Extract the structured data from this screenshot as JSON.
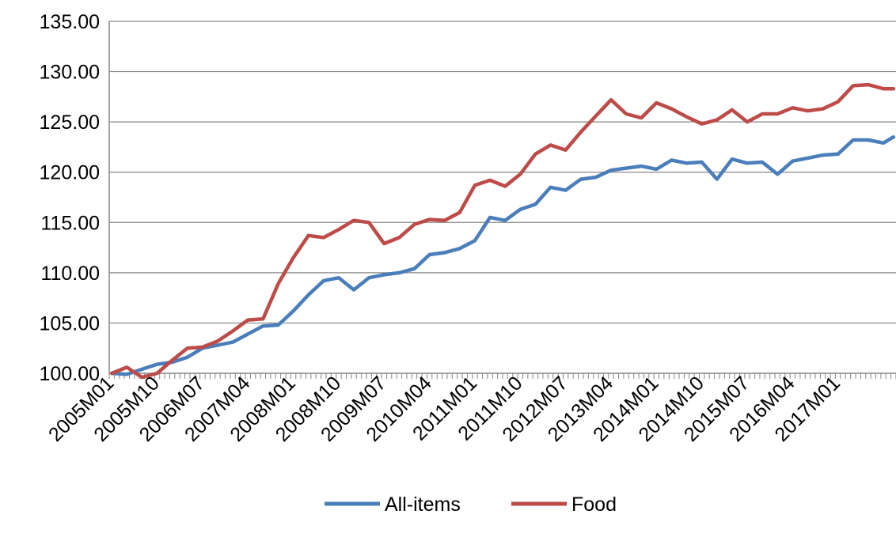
{
  "chart_data": {
    "type": "line",
    "title": "",
    "xlabel": "",
    "ylabel": "",
    "ylim": [
      100,
      135
    ],
    "y_ticks": [
      "100.00",
      "105.00",
      "110.00",
      "115.00",
      "120.00",
      "125.00",
      "130.00",
      "135.00"
    ],
    "x_tick_labels": [
      "2005M01",
      "2005M10",
      "2006M07",
      "2007M04",
      "2008M01",
      "2008M10",
      "2009M07",
      "2010M04",
      "2011M01",
      "2011M10",
      "2012M07",
      "2013M04",
      "2014M01",
      "2014M10",
      "2015M07",
      "2016M04",
      "2017M01"
    ],
    "x_range": [
      "2005M01",
      "2017M12"
    ],
    "grid": "horizontal",
    "legend_position": "bottom",
    "series": [
      {
        "name": "All-items",
        "color": "#4a7ebb",
        "points": [
          [
            "2005M01",
            100.0
          ],
          [
            "2005M04",
            99.9
          ],
          [
            "2005M07",
            100.4
          ],
          [
            "2005M10",
            100.9
          ],
          [
            "2006M01",
            101.1
          ],
          [
            "2006M04",
            101.6
          ],
          [
            "2006M07",
            102.5
          ],
          [
            "2006M10",
            102.8
          ],
          [
            "2007M01",
            103.1
          ],
          [
            "2007M04",
            103.9
          ],
          [
            "2007M07",
            104.7
          ],
          [
            "2007M10",
            104.8
          ],
          [
            "2008M01",
            106.2
          ],
          [
            "2008M04",
            107.8
          ],
          [
            "2008M07",
            109.2
          ],
          [
            "2008M10",
            109.5
          ],
          [
            "2009M01",
            108.3
          ],
          [
            "2009M04",
            109.5
          ],
          [
            "2009M07",
            109.8
          ],
          [
            "2009M10",
            110.0
          ],
          [
            "2010M01",
            110.4
          ],
          [
            "2010M04",
            111.8
          ],
          [
            "2010M07",
            112.0
          ],
          [
            "2010M10",
            112.4
          ],
          [
            "2011M01",
            113.2
          ],
          [
            "2011M04",
            115.5
          ],
          [
            "2011M07",
            115.2
          ],
          [
            "2011M10",
            116.3
          ],
          [
            "2012M01",
            116.8
          ],
          [
            "2012M04",
            118.5
          ],
          [
            "2012M07",
            118.2
          ],
          [
            "2012M10",
            119.3
          ],
          [
            "2013M01",
            119.5
          ],
          [
            "2013M04",
            120.2
          ],
          [
            "2013M07",
            120.4
          ],
          [
            "2013M10",
            120.6
          ],
          [
            "2014M01",
            120.3
          ],
          [
            "2014M04",
            121.2
          ],
          [
            "2014M07",
            120.9
          ],
          [
            "2014M10",
            121.0
          ],
          [
            "2015M01",
            119.3
          ],
          [
            "2015M04",
            121.3
          ],
          [
            "2015M07",
            120.9
          ],
          [
            "2015M10",
            121.0
          ],
          [
            "2016M01",
            119.8
          ],
          [
            "2016M04",
            121.1
          ],
          [
            "2016M07",
            121.4
          ],
          [
            "2016M10",
            121.7
          ],
          [
            "2017M01",
            121.8
          ],
          [
            "2017M04",
            123.2
          ],
          [
            "2017M07",
            123.2
          ],
          [
            "2017M10",
            122.9
          ],
          [
            "2017M12",
            123.5
          ]
        ]
      },
      {
        "name": "Food",
        "color": "#be4b48",
        "points": [
          [
            "2005M01",
            100.0
          ],
          [
            "2005M04",
            100.6
          ],
          [
            "2005M07",
            99.6
          ],
          [
            "2005M10",
            100.0
          ],
          [
            "2006M01",
            101.3
          ],
          [
            "2006M04",
            102.5
          ],
          [
            "2006M07",
            102.6
          ],
          [
            "2006M10",
            103.2
          ],
          [
            "2007M01",
            104.2
          ],
          [
            "2007M04",
            105.3
          ],
          [
            "2007M07",
            105.4
          ],
          [
            "2007M10",
            108.9
          ],
          [
            "2008M01",
            111.5
          ],
          [
            "2008M04",
            113.7
          ],
          [
            "2008M07",
            113.5
          ],
          [
            "2008M10",
            114.3
          ],
          [
            "2009M01",
            115.2
          ],
          [
            "2009M04",
            115.0
          ],
          [
            "2009M07",
            112.9
          ],
          [
            "2009M10",
            113.5
          ],
          [
            "2010M01",
            114.8
          ],
          [
            "2010M04",
            115.3
          ],
          [
            "2010M07",
            115.2
          ],
          [
            "2010M10",
            116.0
          ],
          [
            "2011M01",
            118.7
          ],
          [
            "2011M04",
            119.2
          ],
          [
            "2011M07",
            118.6
          ],
          [
            "2011M10",
            119.8
          ],
          [
            "2012M01",
            121.8
          ],
          [
            "2012M04",
            122.7
          ],
          [
            "2012M07",
            122.2
          ],
          [
            "2012M10",
            124.0
          ],
          [
            "2013M01",
            125.6
          ],
          [
            "2013M04",
            127.2
          ],
          [
            "2013M07",
            125.8
          ],
          [
            "2013M10",
            125.4
          ],
          [
            "2014M01",
            126.9
          ],
          [
            "2014M04",
            126.3
          ],
          [
            "2014M07",
            125.5
          ],
          [
            "2014M10",
            124.8
          ],
          [
            "2015M01",
            125.2
          ],
          [
            "2015M04",
            126.2
          ],
          [
            "2015M07",
            125.0
          ],
          [
            "2015M10",
            125.8
          ],
          [
            "2016M01",
            125.8
          ],
          [
            "2016M04",
            126.4
          ],
          [
            "2016M07",
            126.1
          ],
          [
            "2016M10",
            126.3
          ],
          [
            "2017M01",
            127.0
          ],
          [
            "2017M04",
            128.6
          ],
          [
            "2017M07",
            128.7
          ],
          [
            "2017M10",
            128.3
          ],
          [
            "2017M12",
            128.3
          ]
        ]
      }
    ]
  }
}
